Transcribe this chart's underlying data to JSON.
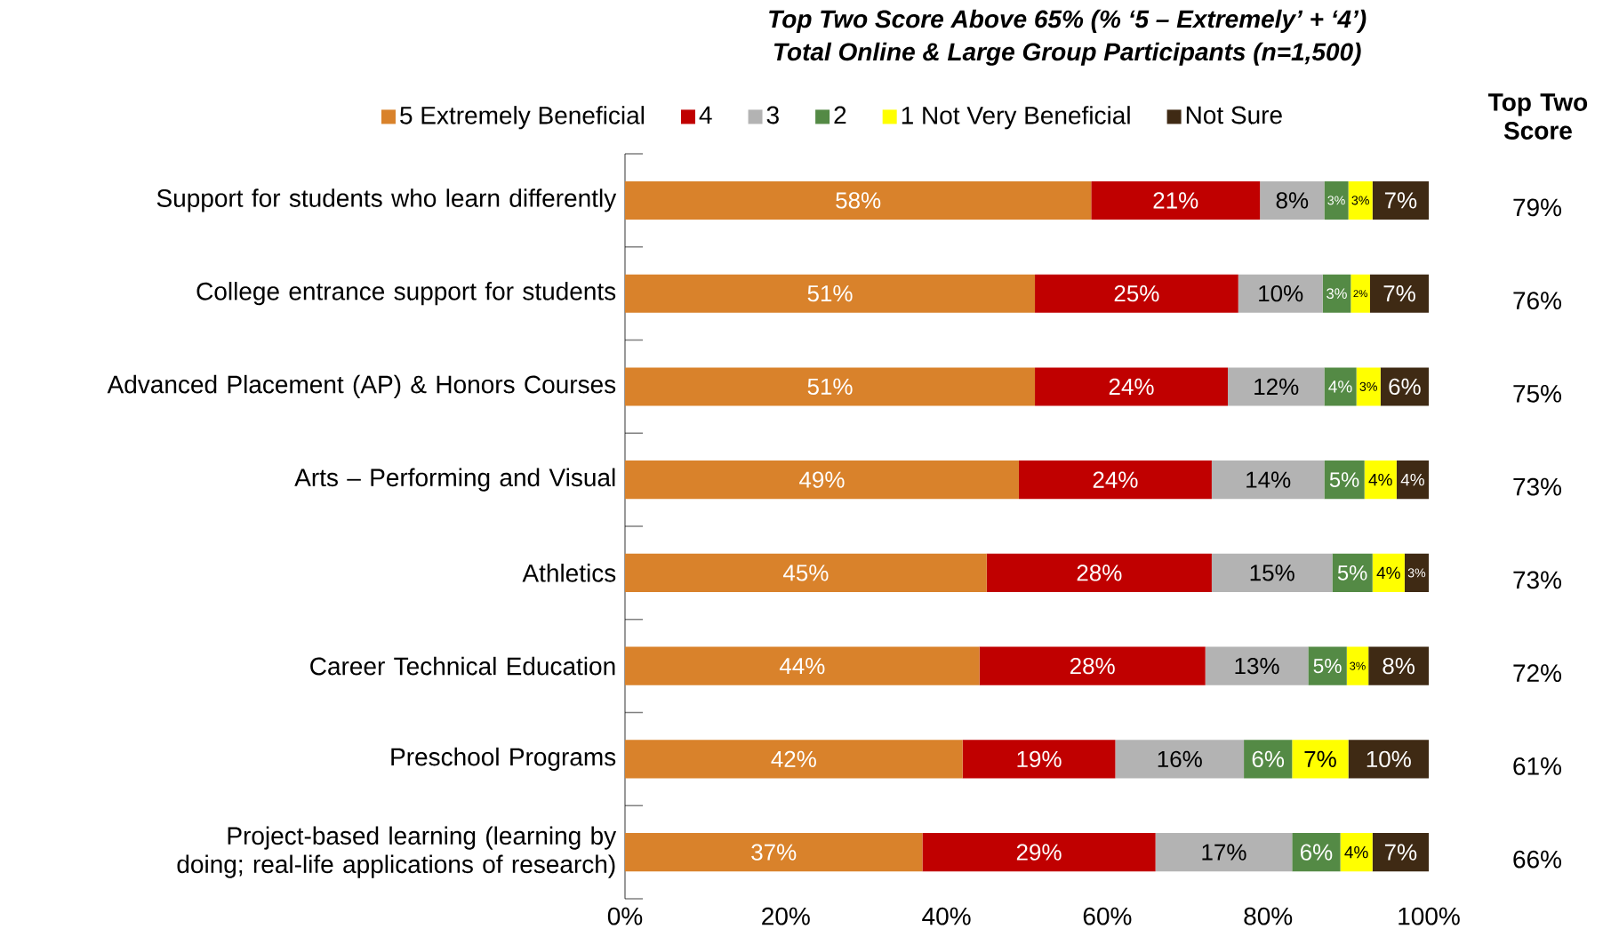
{
  "chart_data": {
    "type": "bar",
    "orientation": "horizontal",
    "stacked": true,
    "title": "Top Two Score Above 65%  (% ‘5 – Extremely’ + ‘4’)",
    "subtitle": "Total Online & Large Group Participants (n=1,500)",
    "categories": [
      "Support for students who learn differently",
      "College entrance support for students",
      "Advanced Placement (AP) & Honors Courses",
      "Arts – Performing and Visual",
      "Athletics",
      "Career Technical Education",
      "Preschool Programs",
      "Project-based learning (learning by doing; real-life applications of research)"
    ],
    "series": [
      {
        "name": "5  Extremely Beneficial",
        "color": "#d9822b",
        "values": [
          58,
          51,
          51,
          49,
          45,
          44.1,
          42,
          37
        ],
        "value_labels": [
          "58%",
          "51%",
          "51%",
          "49%",
          "45%",
          "44%",
          "42%",
          "37%"
        ]
      },
      {
        "name": "4",
        "color": "#c00000",
        "values": [
          21,
          25.3,
          24,
          24,
          28,
          28.1,
          19,
          29
        ],
        "value_labels": [
          "21%",
          "25%",
          "24%",
          "24%",
          "28%",
          "28%",
          "19%",
          "29%"
        ]
      },
      {
        "name": "3",
        "color": "#b3b3b3",
        "values": [
          8,
          10.5,
          12,
          14,
          15,
          12.8,
          16,
          17
        ],
        "value_labels": [
          "8%",
          "10%",
          "12%",
          "14%",
          "15%",
          "13%",
          "16%",
          "17%"
        ]
      },
      {
        "name": "2",
        "color": "#548a45",
        "values": [
          3,
          3.5,
          4,
          5,
          5,
          4.8,
          6,
          6
        ],
        "value_labels": [
          "3%",
          "3%",
          "4%",
          "5%",
          "5%",
          "5%",
          "6%",
          "6%"
        ]
      },
      {
        "name": "1  Not Very Beneficial",
        "color": "#ffff00",
        "values": [
          3,
          2.4,
          3,
          4,
          4,
          2.7,
          7,
          4
        ],
        "value_labels": [
          "3%",
          "2%",
          "3%",
          "4%",
          "4%",
          "3%",
          "7%",
          "4%"
        ]
      },
      {
        "name": "Not Sure",
        "color": "#3f2a14",
        "values": [
          7,
          7.3,
          6,
          4,
          3,
          7.5,
          10,
          7
        ],
        "value_labels": [
          "7%",
          "7%",
          "6%",
          "4%",
          "3%",
          "8%",
          "10%",
          "7%"
        ]
      }
    ],
    "xlim": [
      0,
      100
    ],
    "xticks": [
      {
        "value": 0,
        "label": "0%"
      },
      {
        "value": 20,
        "label": "20%"
      },
      {
        "value": 40,
        "label": "40%"
      },
      {
        "value": 60,
        "label": "60%"
      },
      {
        "value": 80,
        "label": "80%"
      },
      {
        "value": 100,
        "label": "100%"
      }
    ],
    "annotations": [
      "Top Two Score",
      "79%",
      "76%",
      "75%",
      "73%",
      "73%",
      "72%",
      "61%",
      "66%"
    ],
    "legend": "top",
    "grid": false
  }
}
